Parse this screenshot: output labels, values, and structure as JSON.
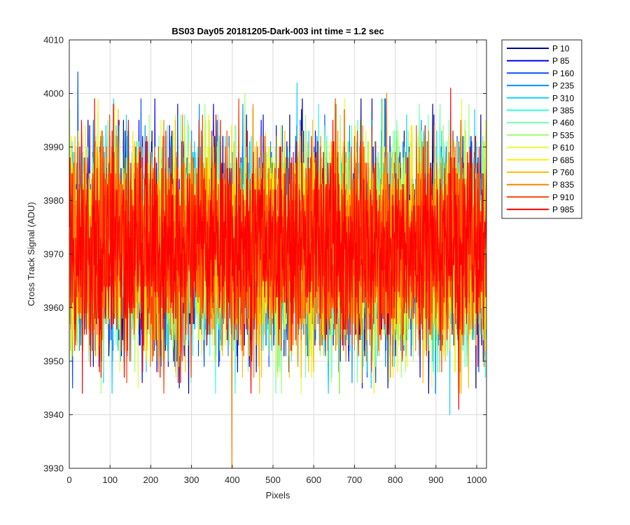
{
  "chart_data": {
    "type": "line",
    "title": "BS03 Day05 20181205-Dark-003 int time = 1.2 sec",
    "xlabel": "Pixels",
    "ylabel": "Cross Track Signal (ADU)",
    "xlim": [
      0,
      1024
    ],
    "ylim": [
      3930,
      4010
    ],
    "x_ticks": [
      "0",
      "100",
      "200",
      "300",
      "400",
      "500",
      "600",
      "700",
      "800",
      "900",
      "1000"
    ],
    "y_ticks": [
      "3930",
      "3940",
      "3950",
      "3960",
      "3970",
      "3980",
      "3990",
      "4000",
      "4010"
    ],
    "grid": true,
    "legend_position": "outside-top-right",
    "x_points": 1024,
    "noise_model": {
      "mean": 3971.5,
      "std": 9.5,
      "min": 3944,
      "max": 3999
    },
    "series": [
      {
        "name": "P 10",
        "color": "#00008f"
      },
      {
        "name": "P 85",
        "color": "#0000ef"
      },
      {
        "name": "P 160",
        "color": "#0050ff"
      },
      {
        "name": "P 235",
        "color": "#0090ff"
      },
      {
        "name": "P 310",
        "color": "#10d0ff"
      },
      {
        "name": "P 385",
        "color": "#30ffdf"
      },
      {
        "name": "P 460",
        "color": "#70ffb0"
      },
      {
        "name": "P 535",
        "color": "#a0ff70"
      },
      {
        "name": "P 610",
        "color": "#dfff30"
      },
      {
        "name": "P 685",
        "color": "#ffef00"
      },
      {
        "name": "P 760",
        "color": "#ffc000"
      },
      {
        "name": "P 835",
        "color": "#ff8000"
      },
      {
        "name": "P 910",
        "color": "#ff4000"
      },
      {
        "name": "P 985",
        "color": "#ff0000"
      }
    ],
    "extremes": [
      {
        "series": "P 160",
        "x": 20,
        "y": 4004
      },
      {
        "series": "P 310",
        "x": 558,
        "y": 4002
      },
      {
        "series": "P 835",
        "x": 778,
        "y": 4000
      },
      {
        "series": "P 535",
        "x": 430,
        "y": 4000
      },
      {
        "series": "P 985",
        "x": 935,
        "y": 4001
      },
      {
        "series": "P 835",
        "x": 398,
        "y": 3930
      },
      {
        "series": "P 310",
        "x": 933,
        "y": 3940
      },
      {
        "series": "P 985",
        "x": 955,
        "y": 3941
      },
      {
        "series": "P 310",
        "x": 104,
        "y": 3944
      },
      {
        "series": "P 610",
        "x": 568,
        "y": 3944
      },
      {
        "series": "P 985",
        "x": 445,
        "y": 3944
      }
    ]
  }
}
